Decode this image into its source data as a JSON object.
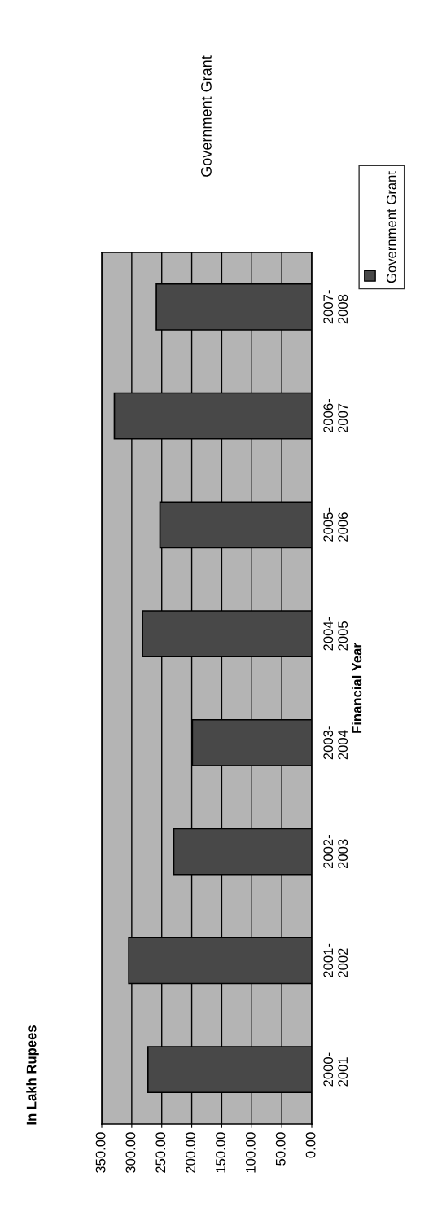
{
  "chart_data": {
    "type": "bar",
    "orientation": "horizontal",
    "title": "Government Grant",
    "ylabel": "Financial Year",
    "annotations": [
      "In Lakh Rupees"
    ],
    "categories": [
      "2007-2008",
      "2006-2007",
      "2005-2006",
      "2004-2005",
      "2003-2004",
      "2002-2003",
      "2001-2002",
      "2000-2001"
    ],
    "series": [
      {
        "name": "Government Grant",
        "color": "#484848",
        "values": [
          259,
          329,
          253,
          282,
          199,
          230,
          305,
          273
        ]
      }
    ],
    "xlim": [
      350,
      0
    ],
    "xticks": [
      {
        "value": 350,
        "label": "350.00"
      },
      {
        "value": 300,
        "label": "300.00"
      },
      {
        "value": 250,
        "label": "250.00"
      },
      {
        "value": 200,
        "label": "200.00"
      },
      {
        "value": 150,
        "label": "150.00"
      },
      {
        "value": 100,
        "label": "100.00"
      },
      {
        "value": 50,
        "label": "50.00"
      },
      {
        "value": 0,
        "label": "0.00"
      }
    ],
    "grid": "x",
    "legend": "top right"
  }
}
